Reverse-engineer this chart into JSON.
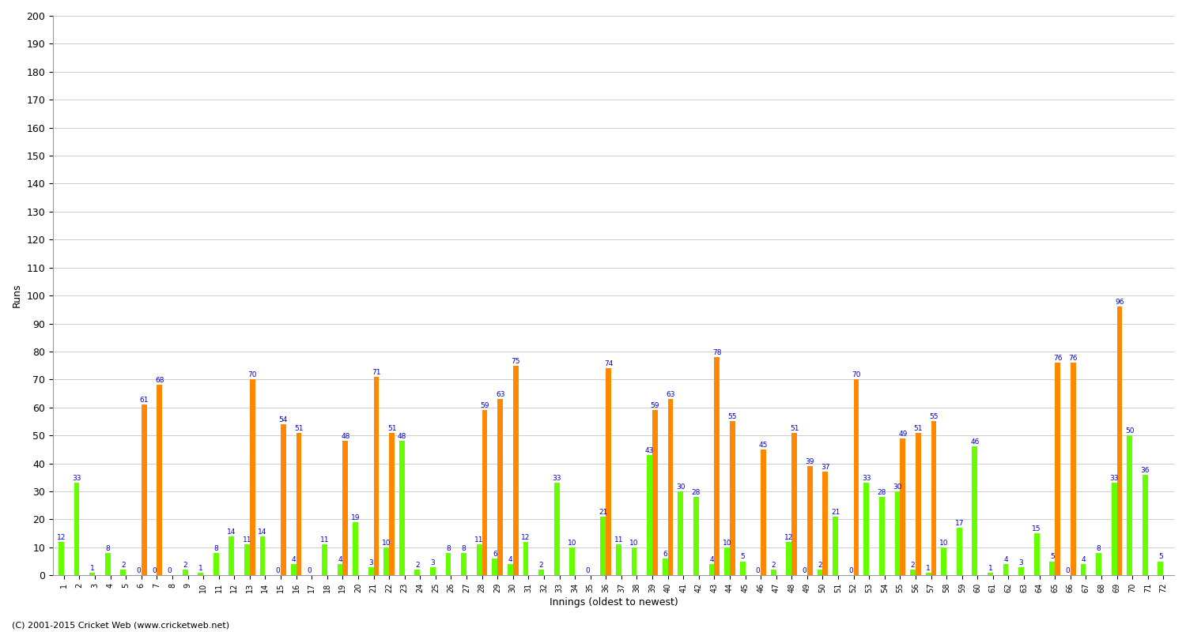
{
  "title": "",
  "xlabel": "Innings (oldest to newest)",
  "ylabel": "Runs",
  "footer": "(C) 2001-2015 Cricket Web (www.cricketweb.net)",
  "ylim": [
    0,
    200
  ],
  "yticks": [
    0,
    10,
    20,
    30,
    40,
    50,
    60,
    70,
    80,
    90,
    100,
    110,
    120,
    130,
    140,
    150,
    160,
    170,
    180,
    190,
    200
  ],
  "bar_green_color": "#66ff00",
  "bar_orange_color": "#ff8800",
  "label_color": "#0000cc",
  "background_color": "#ffffff",
  "grid_color": "#cccccc",
  "innings_data": [
    {
      "inn": "1",
      "green": 12,
      "orange": 0
    },
    {
      "inn": "2",
      "green": 33,
      "orange": 0
    },
    {
      "inn": "3",
      "green": 1,
      "orange": 0
    },
    {
      "inn": "4",
      "green": 8,
      "orange": 0
    },
    {
      "inn": "5",
      "green": 2,
      "orange": 0
    },
    {
      "inn": "6",
      "green": 0,
      "orange": 61
    },
    {
      "inn": "7",
      "green": 0,
      "orange": 68
    },
    {
      "inn": "8",
      "green": 0,
      "orange": 0
    },
    {
      "inn": "9",
      "green": 2,
      "orange": 0
    },
    {
      "inn": "10",
      "green": 1,
      "orange": 0
    },
    {
      "inn": "11",
      "green": 8,
      "orange": 0
    },
    {
      "inn": "12",
      "green": 14,
      "orange": 0
    },
    {
      "inn": "13",
      "green": 11,
      "orange": 70
    },
    {
      "inn": "14",
      "green": 14,
      "orange": 0
    },
    {
      "inn": "15",
      "green": 0,
      "orange": 54
    },
    {
      "inn": "16",
      "green": 4,
      "orange": 51
    },
    {
      "inn": "17",
      "green": 0,
      "orange": 0
    },
    {
      "inn": "18",
      "green": 11,
      "orange": 0
    },
    {
      "inn": "19",
      "green": 4,
      "orange": 48
    },
    {
      "inn": "20",
      "green": 19,
      "orange": 0
    },
    {
      "inn": "21",
      "green": 3,
      "orange": 71
    },
    {
      "inn": "22",
      "green": 10,
      "orange": 51
    },
    {
      "inn": "23",
      "green": 48,
      "orange": 0
    },
    {
      "inn": "24",
      "green": 2,
      "orange": 0
    },
    {
      "inn": "25",
      "green": 3,
      "orange": 0
    },
    {
      "inn": "26",
      "green": 8,
      "orange": 0
    },
    {
      "inn": "27",
      "green": 8,
      "orange": 0
    },
    {
      "inn": "28",
      "green": 11,
      "orange": 59
    },
    {
      "inn": "29",
      "green": 6,
      "orange": 63
    },
    {
      "inn": "30",
      "green": 4,
      "orange": 75
    },
    {
      "inn": "31",
      "green": 12,
      "orange": 0
    },
    {
      "inn": "32",
      "green": 2,
      "orange": 0
    },
    {
      "inn": "33",
      "green": 33,
      "orange": 0
    },
    {
      "inn": "34",
      "green": 10,
      "orange": 0
    },
    {
      "inn": "35",
      "green": 0,
      "orange": 0
    },
    {
      "inn": "36",
      "green": 21,
      "orange": 74
    },
    {
      "inn": "37",
      "green": 11,
      "orange": 0
    },
    {
      "inn": "38",
      "green": 10,
      "orange": 0
    },
    {
      "inn": "39",
      "green": 43,
      "orange": 59
    },
    {
      "inn": "40",
      "green": 6,
      "orange": 63
    },
    {
      "inn": "41",
      "green": 30,
      "orange": 0
    },
    {
      "inn": "42",
      "green": 28,
      "orange": 0
    },
    {
      "inn": "43",
      "green": 4,
      "orange": 78
    },
    {
      "inn": "44",
      "green": 10,
      "orange": 55
    },
    {
      "inn": "45",
      "green": 5,
      "orange": 0
    },
    {
      "inn": "46",
      "green": 0,
      "orange": 45
    },
    {
      "inn": "47",
      "green": 2,
      "orange": 0
    },
    {
      "inn": "48",
      "green": 12,
      "orange": 51
    },
    {
      "inn": "49",
      "green": 0,
      "orange": 39
    },
    {
      "inn": "50",
      "green": 2,
      "orange": 37
    },
    {
      "inn": "51",
      "green": 21,
      "orange": 0
    },
    {
      "inn": "52",
      "green": 0,
      "orange": 70
    },
    {
      "inn": "53",
      "green": 33,
      "orange": 0
    },
    {
      "inn": "54",
      "green": 28,
      "orange": 0
    },
    {
      "inn": "55",
      "green": 30,
      "orange": 49
    },
    {
      "inn": "56",
      "green": 2,
      "orange": 51
    },
    {
      "inn": "57",
      "green": 1,
      "orange": 55
    },
    {
      "inn": "58",
      "green": 10,
      "orange": 0
    },
    {
      "inn": "59",
      "green": 17,
      "orange": 0
    },
    {
      "inn": "60",
      "green": 46,
      "orange": 0
    },
    {
      "inn": "61",
      "green": 1,
      "orange": 0
    },
    {
      "inn": "62",
      "green": 4,
      "orange": 0
    },
    {
      "inn": "63",
      "green": 3,
      "orange": 0
    },
    {
      "inn": "64",
      "green": 15,
      "orange": 0
    },
    {
      "inn": "65",
      "green": 5,
      "orange": 76
    },
    {
      "inn": "66",
      "green": 0,
      "orange": 76
    },
    {
      "inn": "67",
      "green": 4,
      "orange": 0
    },
    {
      "inn": "68",
      "green": 8,
      "orange": 0
    },
    {
      "inn": "69",
      "green": 33,
      "orange": 96
    },
    {
      "inn": "70",
      "green": 50,
      "orange": 0
    },
    {
      "inn": "71",
      "green": 36,
      "orange": 0
    },
    {
      "inn": "72",
      "green": 5,
      "orange": 0
    }
  ]
}
